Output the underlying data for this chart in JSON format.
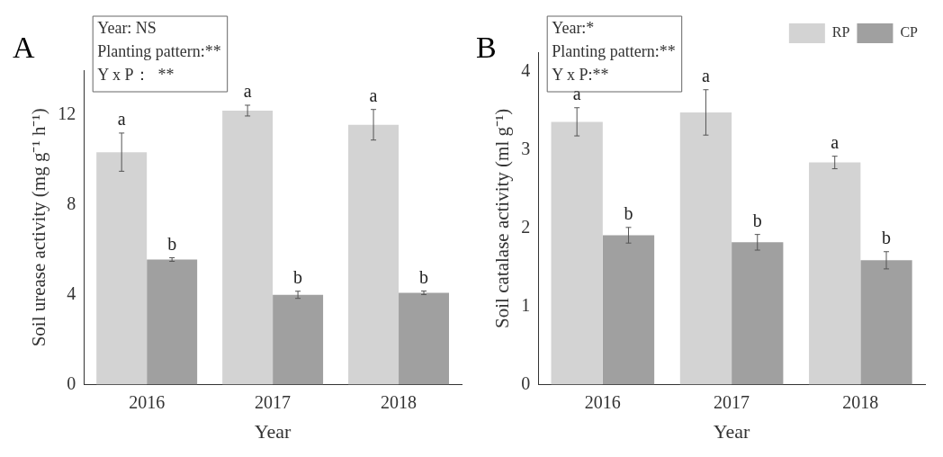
{
  "chart_data": [
    {
      "type": "bar",
      "title": "A",
      "xlabel": "Year",
      "ylabel": "Soil urease activity (mg g⁻¹ h⁻¹)",
      "categories": [
        "2016",
        "2017",
        "2018"
      ],
      "series": [
        {
          "color": "#d3d3d3",
          "values": [
            10.35,
            12.2,
            11.57
          ],
          "errors": [
            0.85,
            0.24,
            0.68
          ]
        },
        {
          "color": "#a0a0a0",
          "values": [
            5.57,
            4.0,
            4.09
          ],
          "errors": [
            0.08,
            0.16,
            0.08
          ]
        }
      ],
      "ylim": [
        0,
        14
      ],
      "yticks": [
        0,
        4,
        8,
        12
      ],
      "grid": false,
      "legend": false,
      "annotations": [
        "Year: NS",
        "Planting pattern:**",
        "Y x P：  **",
        {
          "text": "a",
          "x": "2016",
          "y": 10.35
        },
        {
          "text": "b",
          "x": "2016",
          "y": 5.57
        },
        {
          "text": "a",
          "x": "2017",
          "y": 12.2
        },
        {
          "text": "b",
          "x": "2017",
          "y": 4.0
        },
        {
          "text": "a",
          "x": "2018",
          "y": 11.57
        },
        {
          "text": "b",
          "x": "2018",
          "y": 4.09
        }
      ]
    },
    {
      "type": "bar",
      "title": "B",
      "xlabel": "Year",
      "ylabel": "Soil catalase activity (ml g⁻¹)",
      "categories": [
        "2016",
        "2017",
        "2018"
      ],
      "series": [
        {
          "name": "RP",
          "color": "#d3d3d3",
          "values": [
            3.36,
            3.48,
            2.84
          ],
          "errors": [
            0.18,
            0.29,
            0.08
          ]
        },
        {
          "name": "CP",
          "color": "#a0a0a0",
          "values": [
            1.91,
            1.82,
            1.59
          ],
          "errors": [
            0.1,
            0.1,
            0.11
          ]
        }
      ],
      "ylim": [
        0,
        4.25
      ],
      "yticks": [
        0,
        1,
        2,
        3,
        4
      ],
      "grid": false,
      "legend": "top right",
      "annotations": [
        "Year:*",
        "Planting pattern:**",
        "Y x P:**",
        {
          "text": "a",
          "x": "2016",
          "y": 3.36
        },
        {
          "text": "b",
          "x": "2016",
          "y": 1.91
        },
        {
          "text": "a",
          "x": "2017",
          "y": 3.48
        },
        {
          "text": "b",
          "x": "2017",
          "y": 1.82
        },
        {
          "text": "a",
          "x": "2018",
          "y": 2.84
        },
        {
          "text": "b",
          "x": "2018",
          "y": 1.59
        }
      ]
    }
  ]
}
